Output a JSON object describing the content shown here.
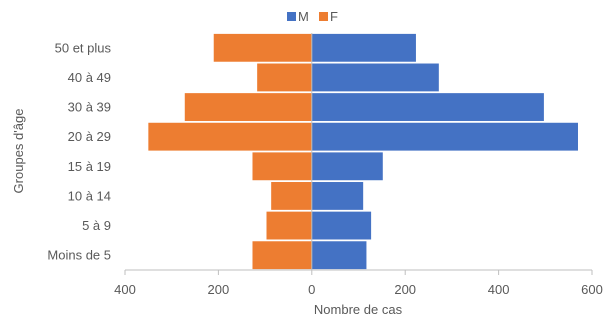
{
  "chart_data": {
    "type": "bar",
    "orientation": "horizontal",
    "subtype": "population-pyramid",
    "title": "",
    "xlabel": "Nombre de cas",
    "ylabel": "Groupes d'âge",
    "categories": [
      "Moins de 5",
      "5 à 9",
      "10 à 14",
      "15 à 19",
      "20 à 29",
      "30 à 39",
      "40 à 49",
      "50 et plus"
    ],
    "series": [
      {
        "name": "M",
        "color": "#4472C4",
        "values": [
          117,
          127,
          110,
          152,
          570,
          497,
          272,
          223
        ]
      },
      {
        "name": "F",
        "color": "#ED7D31",
        "values": [
          127,
          97,
          87,
          127,
          350,
          272,
          117,
          210
        ]
      }
    ],
    "x_ticks": [
      {
        "value": -400,
        "label": "400"
      },
      {
        "value": -200,
        "label": "200"
      },
      {
        "value": 0,
        "label": "0"
      },
      {
        "value": 200,
        "label": "200"
      },
      {
        "value": 400,
        "label": "400"
      },
      {
        "value": 600,
        "label": "600"
      }
    ],
    "xlim": [
      -400,
      600
    ],
    "grid": false,
    "legend_position": "top"
  }
}
